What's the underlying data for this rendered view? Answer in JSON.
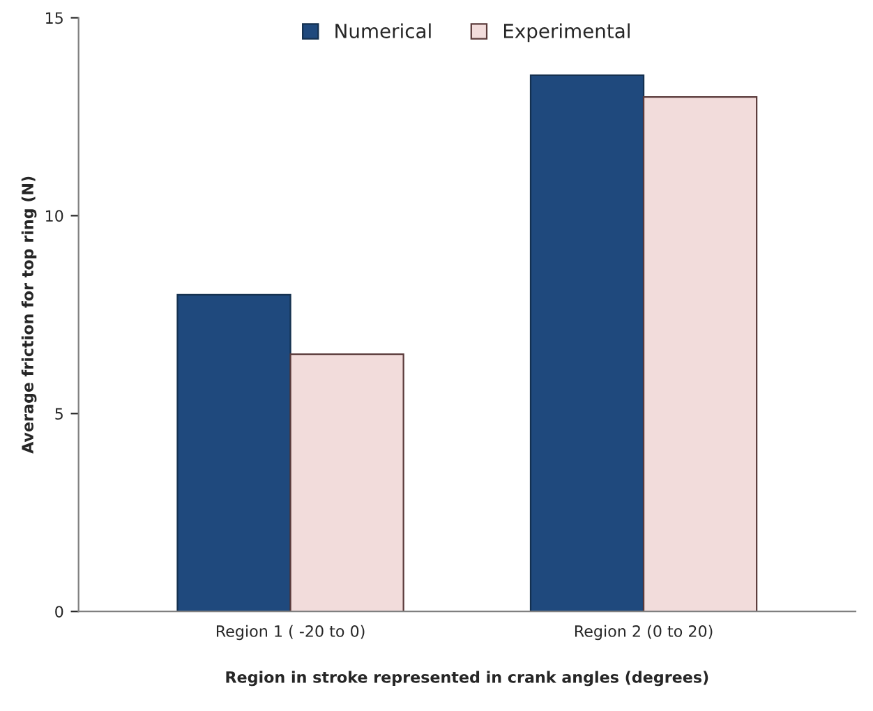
{
  "chart_data": {
    "type": "bar",
    "xlabel": "Region in stroke represented in crank angles (degrees)",
    "ylabel": "Average friction for top ring (N)",
    "categories": [
      "Region 1 ( -20 to 0)",
      "Region 2 (0 to 20)"
    ],
    "series": [
      {
        "name": "Numerical",
        "color": "#1f497d",
        "values": [
          8.0,
          13.55
        ]
      },
      {
        "name": "Experimental",
        "color": "#f2dcdb",
        "values": [
          6.5,
          13.0
        ]
      }
    ],
    "ylim": [
      0,
      15
    ],
    "yticks": [
      0,
      5,
      10,
      15
    ],
    "grid": false,
    "legend": "top"
  }
}
